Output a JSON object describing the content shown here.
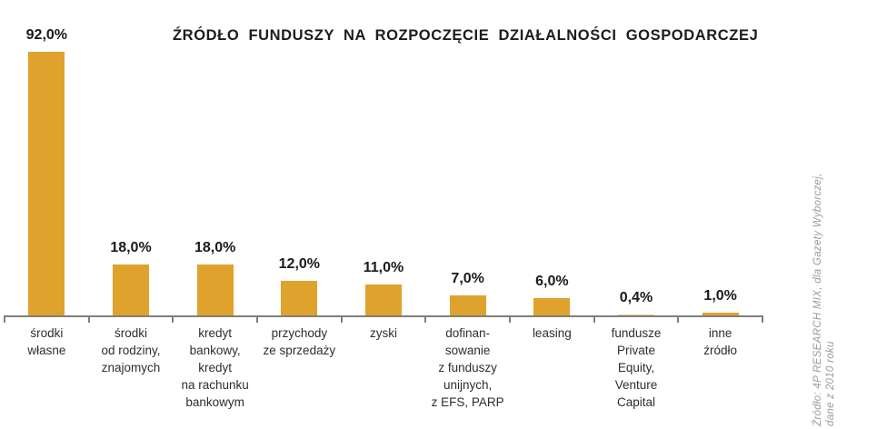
{
  "page": {
    "background": "#FFFFFF"
  },
  "chart_data": {
    "type": "bar",
    "title": "ŹRÓDŁO FUNDUSZY NA ROZPOCZĘCIE DZIAŁALNOŚCI GOSPODARCZEJ",
    "categories": [
      "środki\nwłasne",
      "środki\nod rodziny,\nznajomych",
      "kredyt\nbankowy,\nkredyt\nna rachunku\nbankowym",
      "przychody\nze sprzedaży",
      "zyski",
      "dofinan-\nsowanie\nz funduszy\nunijnych,\nz EFS, PARP",
      "leasing",
      "fundusze\nPrivate\nEquity,\nVenture\nCapital",
      "inne\nźródło"
    ],
    "values": [
      92.0,
      18.0,
      18.0,
      12.0,
      11.0,
      7.0,
      6.0,
      0.4,
      1.0
    ],
    "value_labels": [
      "92,0%",
      "18,0%",
      "18,0%",
      "12,0%",
      "11,0%",
      "7,0%",
      "6,0%",
      "0,4%",
      "1,0%"
    ],
    "unit": "%",
    "decimal_separator": ",",
    "ylim": [
      0,
      100
    ],
    "grid": false,
    "legend": "none",
    "bar_color": "#DFA22C",
    "axis_color": "#7F7F7F",
    "title_color": "#1C1C1C",
    "label_color": "#2E2E2E",
    "source_note": {
      "lines": [
        "Źródło: 4P RESEARCH MIX, dla Gazety Wyborczej,",
        "dane z 2010 roku"
      ],
      "color": "#9B9B9B"
    }
  }
}
